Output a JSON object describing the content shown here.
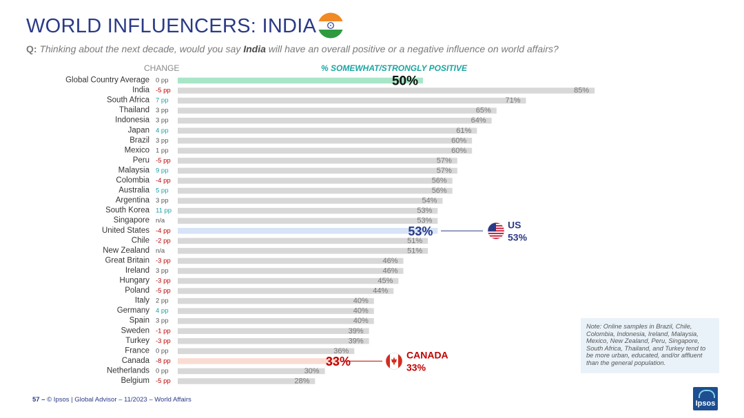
{
  "title": "WORLD INFLUENCERS: INDIA",
  "question": {
    "prefix": "Q:",
    "before": "Thinking about the next decade, would you say ",
    "country": "India",
    "after": " will have an overall positive or a negative influence on world affairs?"
  },
  "colors": {
    "title": "#2a3a86",
    "bar_default": "#d8d8d8",
    "bar_global": "#a8e6c8",
    "bar_us": "#d7e4f7",
    "bar_canada": "#fbdcd2",
    "change_positive": "#1a9fa5",
    "change_negative": "#c00000",
    "change_neutral": "#555555",
    "us_label": "#2a3a86",
    "canada_label": "#c00000",
    "header_positive": "#1aa5a0"
  },
  "chart_data": {
    "type": "bar",
    "orientation": "horizontal",
    "change_header": "CHANGE",
    "value_header": "% SOMEWHAT/STRONGLY POSITIVE",
    "xlim": [
      0,
      100
    ],
    "rows": [
      {
        "country": "Global Country Average",
        "change": "0 pp",
        "value": 50,
        "value_label": "50%"
      },
      {
        "country": "India",
        "change": "-5 pp",
        "value": 85,
        "value_label": "85%"
      },
      {
        "country": "South Africa",
        "change": "7 pp",
        "value": 71,
        "value_label": "71%"
      },
      {
        "country": "Thailand",
        "change": "3 pp",
        "value": 65,
        "value_label": "65%"
      },
      {
        "country": "Indonesia",
        "change": "3 pp",
        "value": 64,
        "value_label": "64%"
      },
      {
        "country": "Japan",
        "change": "4 pp",
        "value": 61,
        "value_label": "61%"
      },
      {
        "country": "Brazil",
        "change": "3 pp",
        "value": 60,
        "value_label": "60%"
      },
      {
        "country": "Mexico",
        "change": "1 pp",
        "value": 60,
        "value_label": "60%"
      },
      {
        "country": "Peru",
        "change": "-5 pp",
        "value": 57,
        "value_label": "57%"
      },
      {
        "country": "Malaysia",
        "change": "9 pp",
        "value": 57,
        "value_label": "57%"
      },
      {
        "country": "Colombia",
        "change": "-4 pp",
        "value": 56,
        "value_label": "56%"
      },
      {
        "country": "Australia",
        "change": "5 pp",
        "value": 56,
        "value_label": "56%"
      },
      {
        "country": "Argentina",
        "change": "3 pp",
        "value": 54,
        "value_label": "54%"
      },
      {
        "country": "South Korea",
        "change": "11 pp",
        "value": 53,
        "value_label": "53%"
      },
      {
        "country": "Singapore",
        "change": "n/a",
        "value": 53,
        "value_label": "53%"
      },
      {
        "country": "United States",
        "change": "-4 pp",
        "value": 53,
        "value_label": "53%"
      },
      {
        "country": "Chile",
        "change": "-2 pp",
        "value": 51,
        "value_label": "51%"
      },
      {
        "country": "New Zealand",
        "change": "n/a",
        "value": 51,
        "value_label": "51%"
      },
      {
        "country": "Great Britain",
        "change": "-3 pp",
        "value": 46,
        "value_label": "46%"
      },
      {
        "country": "Ireland",
        "change": "3 pp",
        "value": 46,
        "value_label": "46%"
      },
      {
        "country": "Hungary",
        "change": "-3 pp",
        "value": 45,
        "value_label": "45%"
      },
      {
        "country": "Poland",
        "change": "-5 pp",
        "value": 44,
        "value_label": "44%"
      },
      {
        "country": "Italy",
        "change": "2 pp",
        "value": 40,
        "value_label": "40%"
      },
      {
        "country": "Germany",
        "change": "4 pp",
        "value": 40,
        "value_label": "40%"
      },
      {
        "country": "Spain",
        "change": "3 pp",
        "value": 40,
        "value_label": "40%"
      },
      {
        "country": "Sweden",
        "change": "-1 pp",
        "value": 39,
        "value_label": "39%"
      },
      {
        "country": "Turkey",
        "change": "-3 pp",
        "value": 39,
        "value_label": "39%"
      },
      {
        "country": "France",
        "change": "0 pp",
        "value": 36,
        "value_label": "36%"
      },
      {
        "country": "Canada",
        "change": "-8 pp",
        "value": 33,
        "value_label": "33%"
      },
      {
        "country": "Netherlands",
        "change": "0 pp",
        "value": 30,
        "value_label": "30%"
      },
      {
        "country": "Belgium",
        "change": "-5 pp",
        "value": 28,
        "value_label": "28%"
      }
    ],
    "callouts": [
      {
        "country": "United States",
        "label": "US",
        "value_label": "53%",
        "flag": "us-flag-icon"
      },
      {
        "country": "Canada",
        "label": "CANADA",
        "value_label": "33%",
        "flag": "canada-flag-icon"
      }
    ]
  },
  "note": "Note: Online samples in Brazil, Chile, Colombia, Indonesia, Ireland, Malaysia, Mexico, New Zealand, Peru, Singapore, South Africa, Thailand, and Turkey tend to be more urban, educated, and/or affluent than the general population.",
  "footer": {
    "page": "57 –",
    "text": "© Ipsos | Global Advisor – 11/2023 – World Affairs"
  },
  "logo": {
    "text": "Ipsos"
  }
}
